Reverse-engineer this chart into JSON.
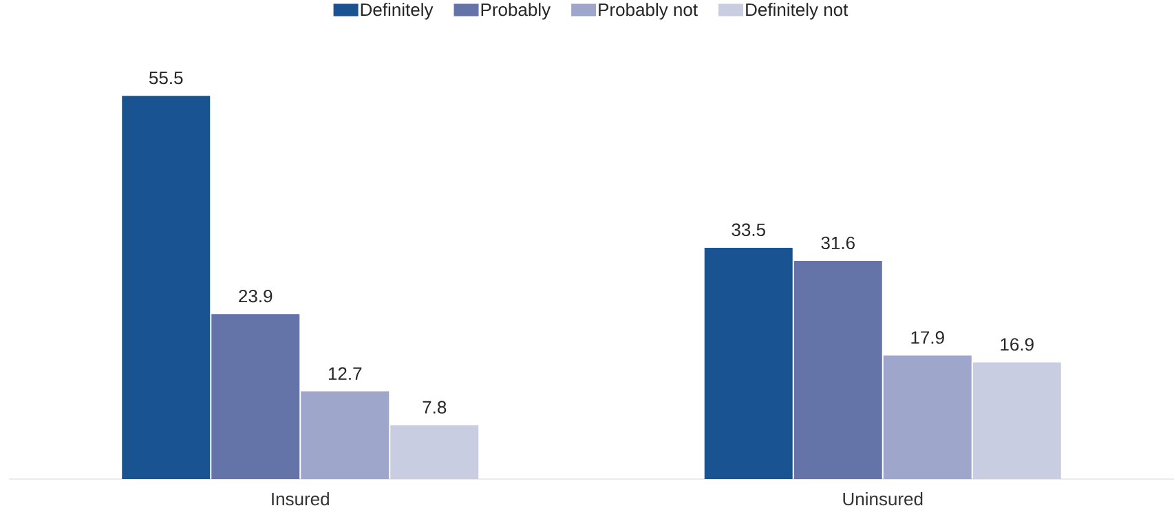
{
  "chart_data": {
    "type": "bar",
    "categories": [
      "Insured",
      "Uninsured"
    ],
    "series": [
      {
        "name": "Definitely",
        "color": "#1a5391",
        "values": [
          55.5,
          33.5
        ]
      },
      {
        "name": "Probably",
        "color": "#6474a8",
        "values": [
          23.9,
          31.6
        ]
      },
      {
        "name": "Probably not",
        "color": "#9ea6cb",
        "values": [
          12.7,
          17.9
        ]
      },
      {
        "name": "Definitely not",
        "color": "#c8cde2",
        "values": [
          7.8,
          16.9
        ]
      }
    ],
    "data_labels": true,
    "legend": "top"
  }
}
